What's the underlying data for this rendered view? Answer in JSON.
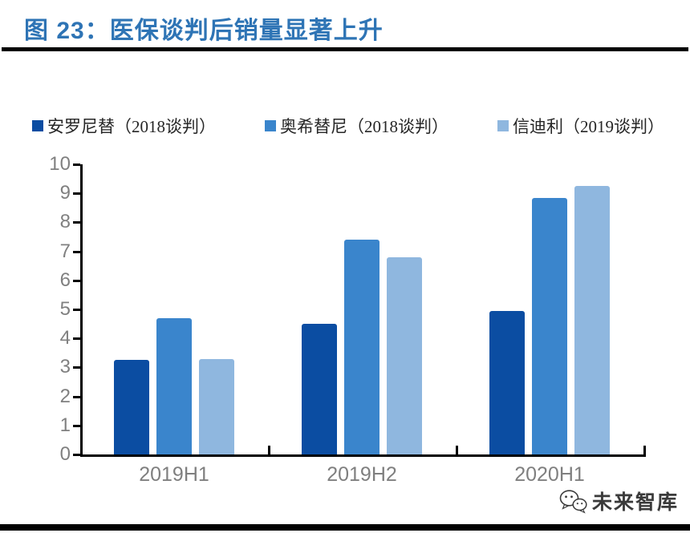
{
  "figure": {
    "title": "图 23：医保谈判后销量显著上升"
  },
  "watermark": {
    "text": "未来智库"
  },
  "chart_data": {
    "type": "bar",
    "title": "图 23：医保谈判后销量显著上升",
    "categories": [
      "2019H1",
      "2019H2",
      "2020H1"
    ],
    "series": [
      {
        "name": "安罗尼替（2018谈判）",
        "color": "#0B4DA2",
        "values": [
          3.25,
          4.5,
          4.95
        ]
      },
      {
        "name": "奥希替尼（2018谈判）",
        "color": "#3A85CC",
        "values": [
          4.7,
          7.4,
          8.85
        ]
      },
      {
        "name": "信迪利（2019谈判）",
        "color": "#8FB7DF",
        "values": [
          3.3,
          6.8,
          9.25
        ]
      }
    ],
    "xlabel": "",
    "ylabel": "",
    "ylim": [
      0,
      10
    ],
    "ytick_step": 1,
    "grid": false,
    "legend_position": "top",
    "axis_color": "#000000",
    "tick_label_color": "#808080",
    "title_color": "#2E74B5"
  }
}
